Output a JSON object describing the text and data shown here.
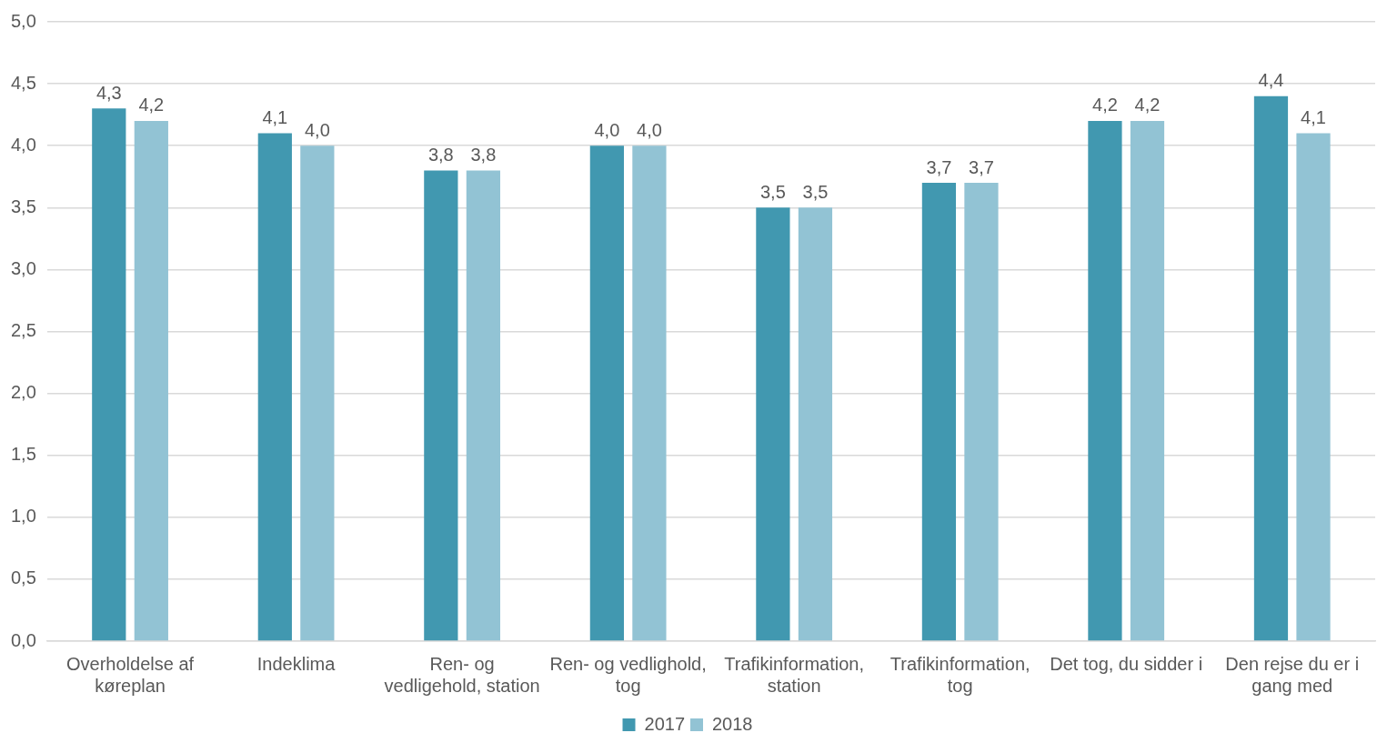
{
  "chart_data": {
    "type": "bar",
    "categories": [
      "Overholdelse af køreplan",
      "Indeklima",
      "Ren- og vedligehold, station",
      "Ren- og vedlighold, tog",
      "Trafikinformation, station",
      "Trafikinformation, tog",
      "Det tog, du sidder i",
      "Den rejse du er i gang med"
    ],
    "series": [
      {
        "name": "2017",
        "color": "#4198b0",
        "values": [
          4.3,
          4.1,
          3.8,
          4.0,
          3.5,
          3.7,
          4.2,
          4.4
        ],
        "value_labels": [
          "4,3",
          "4,1",
          "3,8",
          "4,0",
          "3,5",
          "3,7",
          "4,2",
          "4,4"
        ]
      },
      {
        "name": "2018",
        "color": "#92c3d4",
        "values": [
          4.2,
          4.0,
          3.8,
          4.0,
          3.5,
          3.7,
          4.2,
          4.1
        ],
        "value_labels": [
          "4,2",
          "4,0",
          "3,8",
          "4,0",
          "3,5",
          "3,7",
          "4,2",
          "4,1"
        ]
      }
    ],
    "ylim": [
      0,
      5
    ],
    "yticks": [
      {
        "value": 0,
        "label": "0,0"
      },
      {
        "value": 0.5,
        "label": "0,5"
      },
      {
        "value": 1,
        "label": "1,0"
      },
      {
        "value": 1.5,
        "label": "1,5"
      },
      {
        "value": 2,
        "label": "2,0"
      },
      {
        "value": 2.5,
        "label": "2,5"
      },
      {
        "value": 3,
        "label": "3,0"
      },
      {
        "value": 3.5,
        "label": "3,5"
      },
      {
        "value": 4,
        "label": "4,0"
      },
      {
        "value": 4.5,
        "label": "4,5"
      },
      {
        "value": 5,
        "label": "5,0"
      }
    ],
    "grid": "y",
    "legend": "bottom"
  }
}
